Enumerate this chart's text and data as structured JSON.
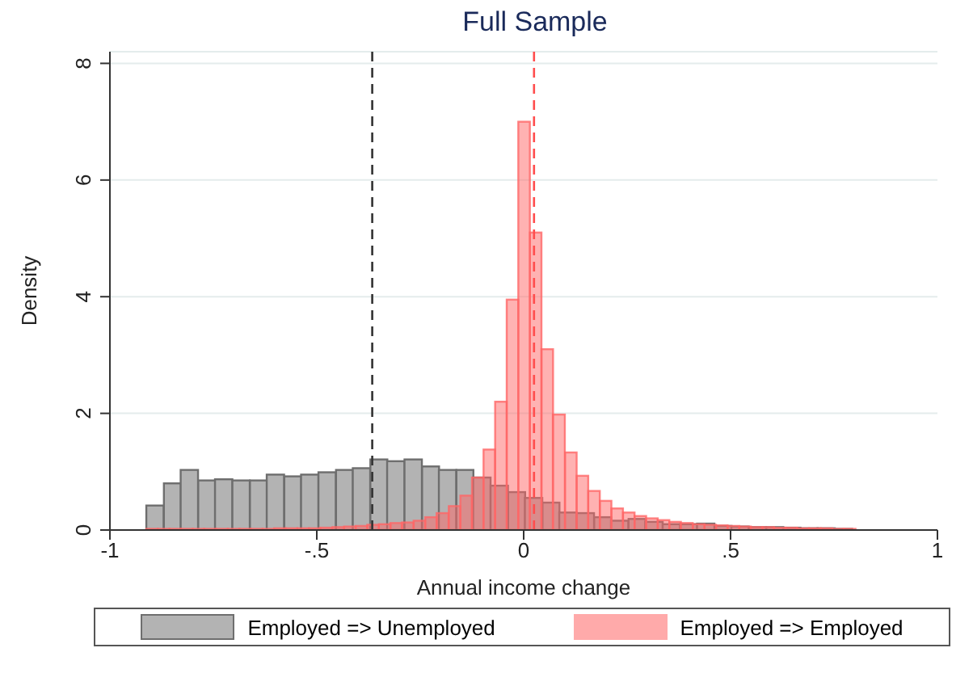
{
  "chart_data": {
    "type": "bar",
    "title": "Full Sample",
    "xlabel": "Annual income change",
    "ylabel": "Density",
    "xlim": [
      -1,
      1
    ],
    "xticks": [
      {
        "value": -1,
        "label": "-1"
      },
      {
        "value": -0.5,
        "label": "-.5"
      },
      0,
      {
        "value": 0.5,
        "label": ".5"
      },
      1
    ],
    "ylim": [
      0,
      8.2
    ],
    "yticks": [
      0,
      2,
      4,
      6,
      8
    ],
    "grid": "y",
    "legend": "bottom",
    "series": [
      {
        "name": "Employed => Unemployed",
        "color": "#b3b3b3",
        "x": [
          -0.891,
          -0.849,
          -0.808,
          -0.766,
          -0.725,
          -0.683,
          -0.641,
          -0.6,
          -0.558,
          -0.517,
          -0.475,
          -0.433,
          -0.392,
          -0.35,
          -0.309,
          -0.267,
          -0.225,
          -0.184,
          -0.142,
          -0.101,
          -0.059,
          -0.017,
          0.024,
          0.066,
          0.107,
          0.149,
          0.191,
          0.232,
          0.274,
          0.315,
          0.357,
          0.399,
          0.44,
          0.482,
          0.523,
          0.565,
          0.607,
          0.648,
          0.69,
          0.731,
          0.773
        ],
        "values": [
          0.42,
          0.8,
          1.03,
          0.85,
          0.87,
          0.85,
          0.85,
          0.95,
          0.92,
          0.95,
          0.99,
          1.03,
          1.06,
          1.21,
          1.18,
          1.21,
          1.09,
          1.03,
          1.03,
          0.9,
          0.76,
          0.65,
          0.55,
          0.47,
          0.3,
          0.29,
          0.22,
          0.16,
          0.19,
          0.14,
          0.1,
          0.1,
          0.11,
          0.07,
          0.06,
          0.05,
          0.05,
          0.04,
          0.03,
          0.03,
          0.02
        ]
      },
      {
        "name": "Employed => Employed",
        "color": "#ff6666",
        "x": [
          -0.898,
          -0.87,
          -0.842,
          -0.814,
          -0.786,
          -0.758,
          -0.729,
          -0.701,
          -0.673,
          -0.645,
          -0.617,
          -0.589,
          -0.561,
          -0.533,
          -0.505,
          -0.477,
          -0.448,
          -0.42,
          -0.392,
          -0.364,
          -0.336,
          -0.308,
          -0.28,
          -0.252,
          -0.224,
          -0.196,
          -0.167,
          -0.139,
          -0.111,
          -0.083,
          -0.055,
          -0.027,
          0.001,
          0.029,
          0.057,
          0.085,
          0.114,
          0.142,
          0.17,
          0.198,
          0.226,
          0.254,
          0.282,
          0.31,
          0.338,
          0.366,
          0.394,
          0.423,
          0.451,
          0.479,
          0.507,
          0.535,
          0.563,
          0.591,
          0.619,
          0.647,
          0.675,
          0.704,
          0.732,
          0.76,
          0.788
        ],
        "values": [
          0.02,
          0.02,
          0.02,
          0.02,
          0.02,
          0.02,
          0.02,
          0.02,
          0.02,
          0.02,
          0.02,
          0.03,
          0.03,
          0.03,
          0.03,
          0.04,
          0.05,
          0.06,
          0.07,
          0.09,
          0.1,
          0.12,
          0.13,
          0.16,
          0.22,
          0.29,
          0.41,
          0.59,
          0.9,
          1.38,
          2.2,
          3.95,
          7.0,
          5.1,
          3.1,
          1.98,
          1.33,
          0.93,
          0.67,
          0.5,
          0.37,
          0.3,
          0.24,
          0.2,
          0.17,
          0.14,
          0.12,
          0.1,
          0.09,
          0.08,
          0.07,
          0.06,
          0.05,
          0.05,
          0.04,
          0.04,
          0.03,
          0.03,
          0.03,
          0.02,
          0.02
        ]
      }
    ],
    "ref_lines": [
      {
        "axis": "x",
        "value": -0.366,
        "color": "#333333",
        "line_style": "dashed"
      },
      {
        "axis": "x",
        "value": 0.025,
        "color": "#ff4d4d",
        "line_style": "dashed"
      }
    ]
  }
}
